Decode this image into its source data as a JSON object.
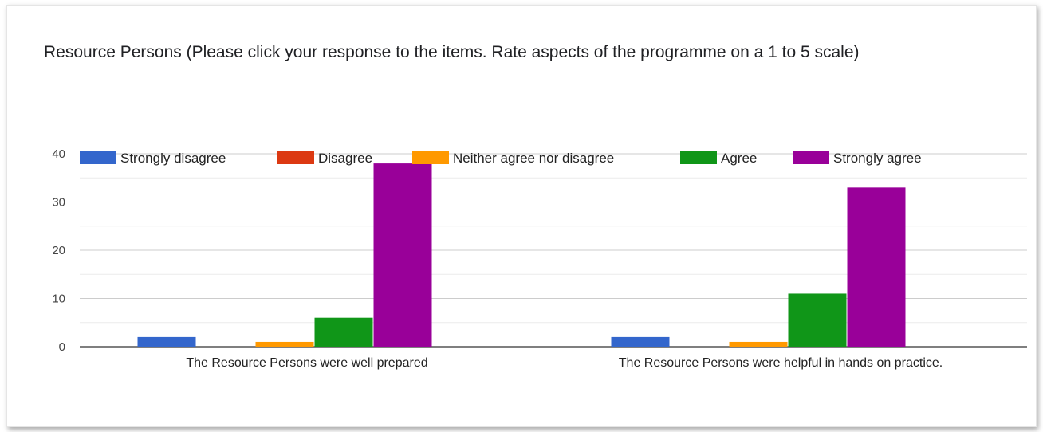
{
  "chart_data": {
    "type": "bar",
    "title": "Resource Persons (Please click your response to the items. Rate aspects of the programme on a 1 to 5 scale)",
    "categories": [
      "The Resource Persons were well prepared",
      "The Resource Persons were helpful in hands on practice."
    ],
    "series": [
      {
        "name": "Strongly disagree",
        "color": "#3366cc",
        "values": [
          2,
          2
        ]
      },
      {
        "name": "Disagree",
        "color": "#dc3912",
        "values": [
          0,
          0
        ]
      },
      {
        "name": "Neither agree nor disagree",
        "color": "#ff9900",
        "values": [
          1,
          1
        ]
      },
      {
        "name": "Agree",
        "color": "#109618",
        "values": [
          6,
          11
        ]
      },
      {
        "name": "Strongly agree",
        "color": "#990099",
        "values": [
          38,
          33
        ]
      }
    ],
    "ylim": [
      0,
      40
    ],
    "yticks": [
      0,
      10,
      20,
      30,
      40
    ],
    "grid": true,
    "legend_position": "top"
  }
}
